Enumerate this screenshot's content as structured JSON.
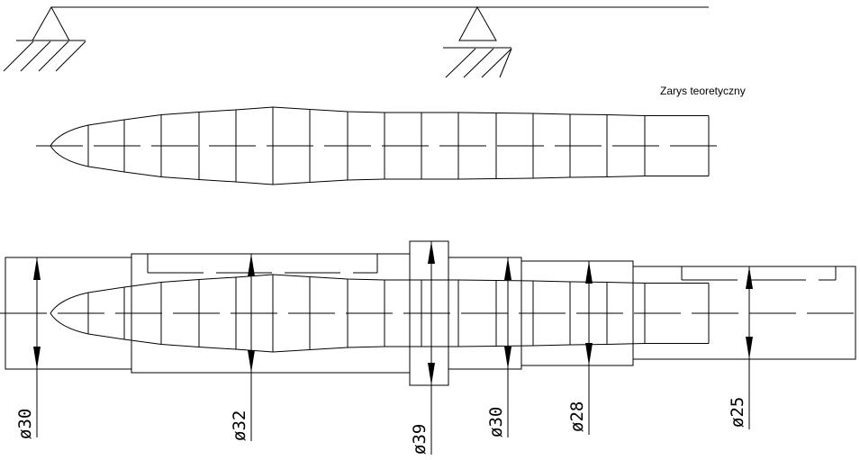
{
  "drawing": {
    "outline_label": "Zarys teoretyczny",
    "dimensions": [
      {
        "label": "ø30",
        "value_mm": 30
      },
      {
        "label": "ø32",
        "value_mm": 32
      },
      {
        "label": "ø39",
        "value_mm": 39
      },
      {
        "label": "ø30",
        "value_mm": 30
      },
      {
        "label": "ø28",
        "value_mm": 28
      },
      {
        "label": "ø25",
        "value_mm": 25
      }
    ],
    "colors": {
      "line": "#000000",
      "background": "#ffffff"
    }
  }
}
